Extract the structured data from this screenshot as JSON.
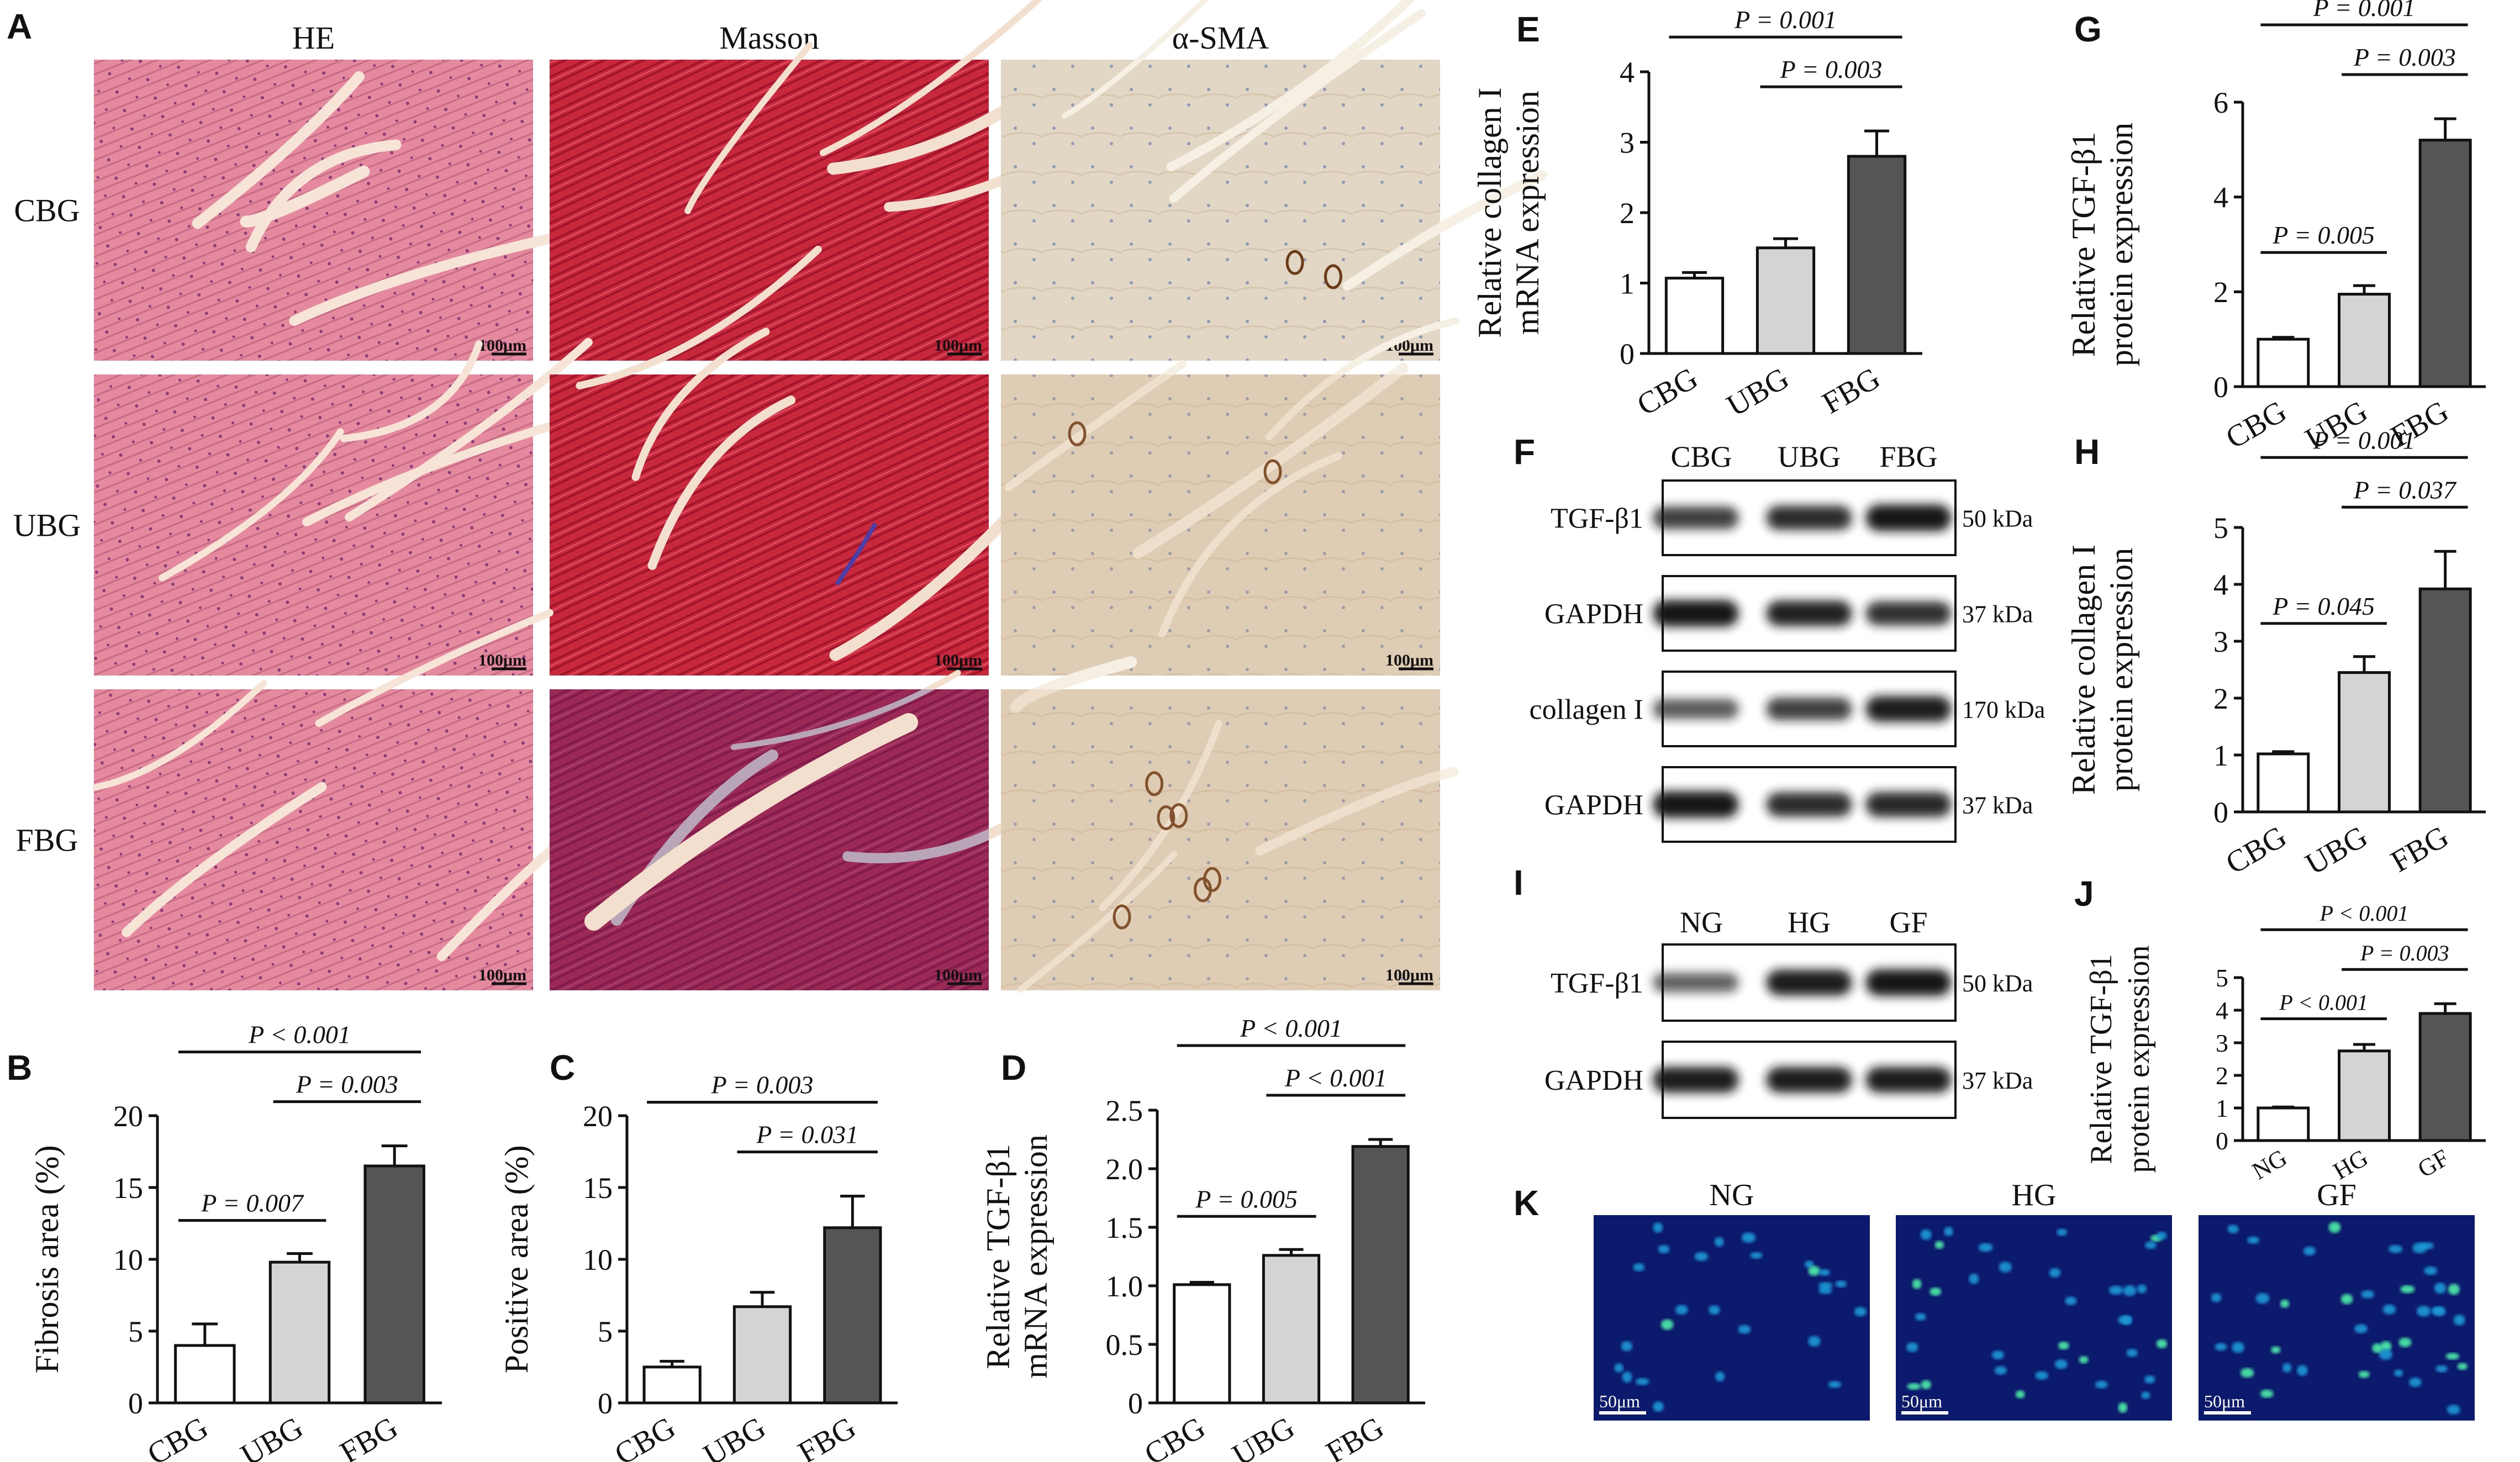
{
  "panels": {
    "A": {
      "label": "A",
      "columns": [
        "HE",
        "Masson",
        "α-SMA"
      ],
      "rows": [
        "CBG",
        "UBG",
        "FBG"
      ],
      "scale_bar": "100μm",
      "stain_colors": {
        "HE": "#e58a9e",
        "Masson": "#c8283c",
        "α-SMA": "#e2d6c4"
      }
    },
    "K": {
      "label": "K",
      "columns": [
        "NG",
        "HG",
        "GF"
      ],
      "scale_bar": "50μm",
      "colors": {
        "background": "#0c1a6e",
        "nuclei": "#1a9ad6",
        "positive": "#4df0a8"
      }
    },
    "F": {
      "label": "F",
      "lanes": [
        "CBG",
        "UBG",
        "FBG"
      ],
      "blots": [
        {
          "name": "TGF-β1",
          "kda": "50 kDa",
          "intensity": [
            0.72,
            0.85,
            1.0
          ]
        },
        {
          "name": "GAPDH",
          "kda": "37 kDa",
          "intensity": [
            1.0,
            0.92,
            0.82
          ]
        },
        {
          "name": "collagen I",
          "kda": "170 kDa",
          "intensity": [
            0.55,
            0.72,
            0.95
          ]
        },
        {
          "name": "GAPDH",
          "kda": "37 kDa",
          "intensity": [
            1.0,
            0.85,
            0.88
          ]
        }
      ]
    },
    "I": {
      "label": "I",
      "lanes": [
        "NG",
        "HG",
        "GF"
      ],
      "blots": [
        {
          "name": "TGF-β1",
          "kda": "50 kDa",
          "intensity": [
            0.5,
            0.95,
            1.0
          ]
        },
        {
          "name": "GAPDH",
          "kda": "37 kDa",
          "intensity": [
            0.95,
            0.95,
            0.95
          ]
        }
      ]
    }
  },
  "chart_data": [
    {
      "panel": "B",
      "type": "bar",
      "ylabel": "Fibrosis area (%)",
      "categories": [
        "CBG",
        "UBG",
        "FBG"
      ],
      "values": [
        4.0,
        9.8,
        16.5
      ],
      "errors": [
        1.5,
        0.6,
        1.4
      ],
      "ylim": [
        0,
        20
      ],
      "yticks": [
        0,
        5,
        10,
        15,
        20
      ],
      "colors": [
        "#ffffff",
        "#d4d4d4",
        "#555555"
      ],
      "annotations": [
        {
          "from": 0,
          "to": 1,
          "text": "P = 0.007"
        },
        {
          "from": 1,
          "to": 2,
          "text": "P = 0.003"
        },
        {
          "from": 0,
          "to": 2,
          "text": "P < 0.001"
        }
      ]
    },
    {
      "panel": "C",
      "type": "bar",
      "ylabel": "Positive area (%)",
      "categories": [
        "CBG",
        "UBG",
        "FBG"
      ],
      "values": [
        2.5,
        6.7,
        12.2
      ],
      "errors": [
        0.4,
        1.0,
        2.2
      ],
      "ylim": [
        0,
        20
      ],
      "yticks": [
        0,
        5,
        10,
        15,
        20
      ],
      "colors": [
        "#ffffff",
        "#d4d4d4",
        "#555555"
      ],
      "annotations": [
        {
          "from": 1,
          "to": 2,
          "text": "P = 0.031"
        },
        {
          "from": 0,
          "to": 2,
          "text": "P = 0.003"
        }
      ]
    },
    {
      "panel": "D",
      "type": "bar",
      "ylabel": [
        "Relative TGF-β1",
        "mRNA expression"
      ],
      "categories": [
        "CBG",
        "UBG",
        "FBG"
      ],
      "values": [
        1.01,
        1.26,
        2.19
      ],
      "errors": [
        0.02,
        0.05,
        0.06
      ],
      "ylim": [
        0,
        2.5
      ],
      "yticks": [
        "0",
        "0.5",
        "1.0",
        "1.5",
        "2.0",
        "2.5"
      ],
      "colors": [
        "#ffffff",
        "#d4d4d4",
        "#555555"
      ],
      "annotations": [
        {
          "from": 0,
          "to": 1,
          "text": "P = 0.005"
        },
        {
          "from": 1,
          "to": 2,
          "text": "P < 0.001"
        },
        {
          "from": 0,
          "to": 2,
          "text": "P < 0.001"
        }
      ]
    },
    {
      "panel": "E",
      "type": "bar",
      "ylabel": [
        "Relative collagen I",
        "mRNA expression"
      ],
      "categories": [
        "CBG",
        "UBG",
        "FBG"
      ],
      "values": [
        1.07,
        1.5,
        2.8
      ],
      "errors": [
        0.08,
        0.13,
        0.36
      ],
      "ylim": [
        0,
        4
      ],
      "yticks": [
        0,
        1,
        2,
        3,
        4
      ],
      "colors": [
        "#ffffff",
        "#d4d4d4",
        "#555555"
      ],
      "annotations": [
        {
          "from": 1,
          "to": 2,
          "text": "P = 0.003"
        },
        {
          "from": 0,
          "to": 2,
          "text": "P = 0.001"
        }
      ]
    },
    {
      "panel": "G",
      "type": "bar",
      "ylabel": [
        "Relative TGF-β1",
        "protein expression"
      ],
      "categories": [
        "CBG",
        "UBG",
        "FBG"
      ],
      "values": [
        1.0,
        1.95,
        5.2
      ],
      "errors": [
        0.04,
        0.18,
        0.45
      ],
      "ylim": [
        0,
        6
      ],
      "yticks": [
        0,
        2,
        4,
        6
      ],
      "colors": [
        "#ffffff",
        "#d4d4d4",
        "#555555"
      ],
      "annotations": [
        {
          "from": 0,
          "to": 1,
          "text": "P = 0.005"
        },
        {
          "from": 1,
          "to": 2,
          "text": "P = 0.003"
        },
        {
          "from": 0,
          "to": 2,
          "text": "P = 0.001"
        }
      ]
    },
    {
      "panel": "H",
      "type": "bar",
      "ylabel": [
        "Relative collagen I",
        "protein expression"
      ],
      "categories": [
        "CBG",
        "UBG",
        "FBG"
      ],
      "values": [
        1.02,
        2.45,
        3.92
      ],
      "errors": [
        0.04,
        0.28,
        0.66
      ],
      "ylim": [
        0,
        5
      ],
      "yticks": [
        0,
        1,
        2,
        3,
        4,
        5
      ],
      "colors": [
        "#ffffff",
        "#d4d4d4",
        "#555555"
      ],
      "annotations": [
        {
          "from": 0,
          "to": 1,
          "text": "P = 0.045"
        },
        {
          "from": 1,
          "to": 2,
          "text": "P = 0.037"
        },
        {
          "from": 0,
          "to": 2,
          "text": "P = 0.001"
        }
      ]
    },
    {
      "panel": "J",
      "type": "bar",
      "ylabel": [
        "Relative TGF-β1",
        "protein expression"
      ],
      "categories": [
        "NG",
        "HG",
        "GF"
      ],
      "values": [
        1.0,
        2.75,
        3.9
      ],
      "errors": [
        0.03,
        0.2,
        0.3
      ],
      "ylim": [
        0,
        5
      ],
      "yticks": [
        0,
        1,
        2,
        3,
        4,
        5
      ],
      "colors": [
        "#ffffff",
        "#d4d4d4",
        "#555555"
      ],
      "annotations": [
        {
          "from": 0,
          "to": 1,
          "text": "P < 0.001"
        },
        {
          "from": 1,
          "to": 2,
          "text": "P = 0.003"
        },
        {
          "from": 0,
          "to": 2,
          "text": "P < 0.001"
        }
      ]
    }
  ]
}
